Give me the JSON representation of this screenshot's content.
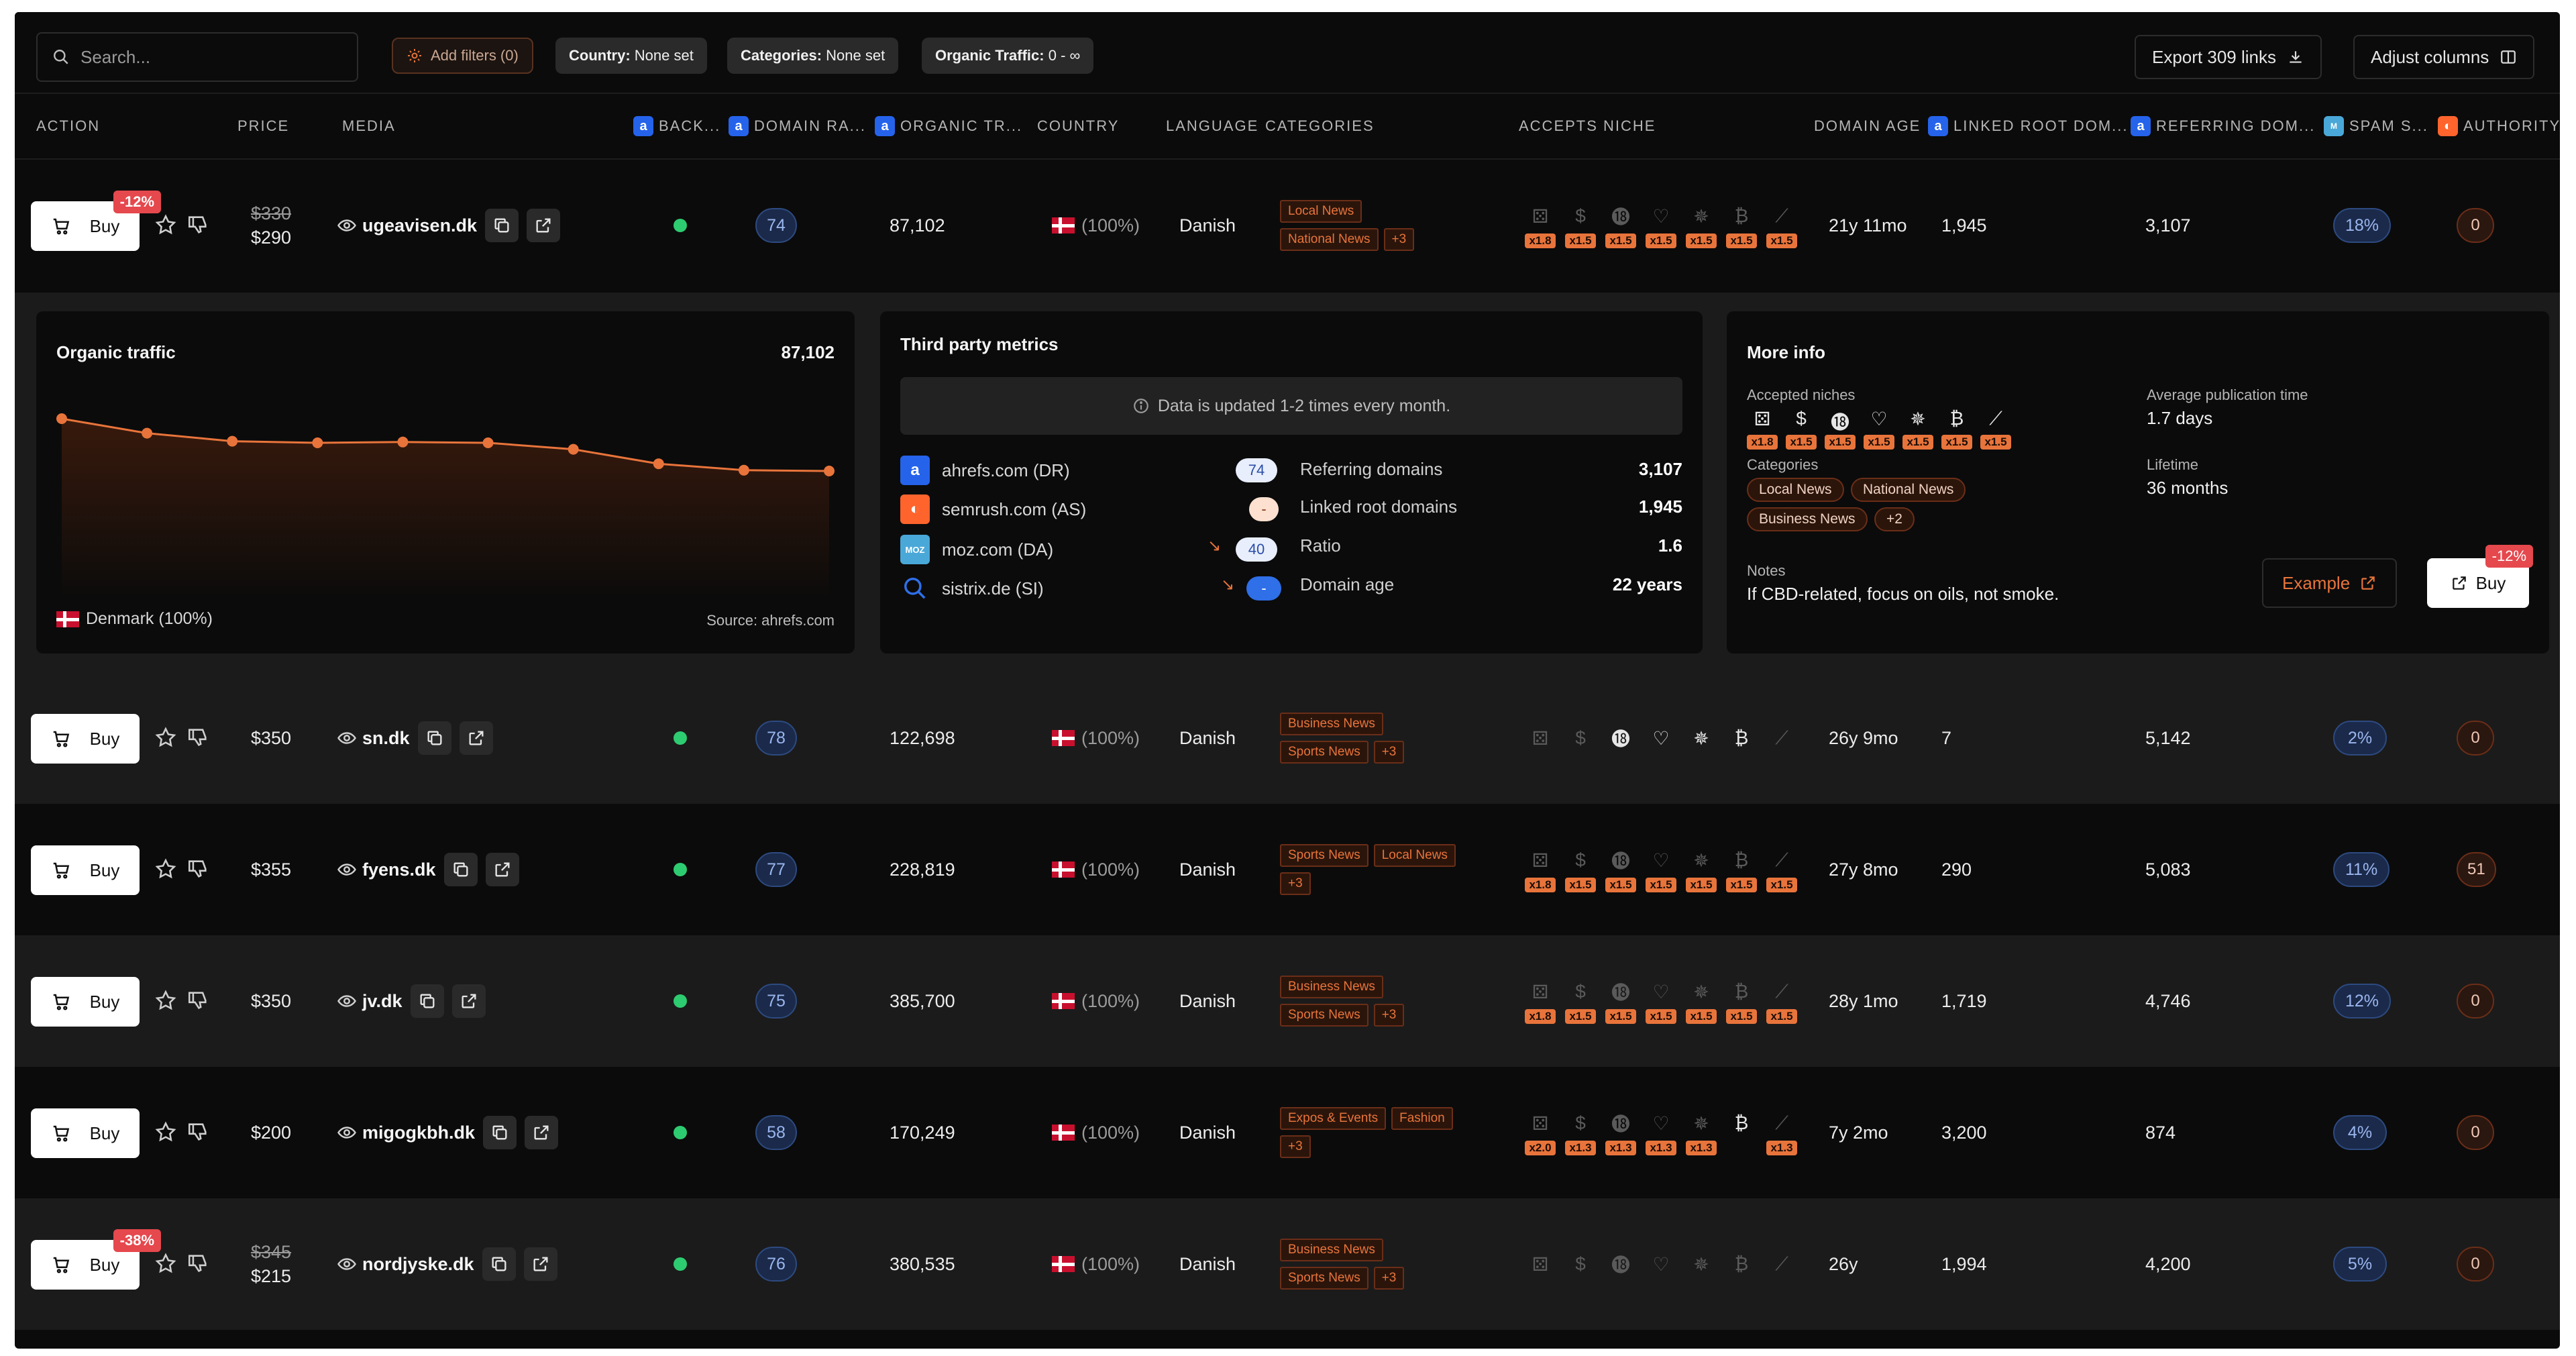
{
  "toolbar": {
    "search_placeholder": "Search...",
    "add_filters": "Add filters (0)",
    "chips": [
      {
        "label": "Country:",
        "value": "None set"
      },
      {
        "label": "Categories:",
        "value": "None set"
      },
      {
        "label": "Organic Traffic:",
        "value": "0 - ∞"
      }
    ],
    "export": "Export 309 links",
    "adjust": "Adjust columns"
  },
  "columns": {
    "action": "ACTION",
    "price": "PRICE",
    "media": "MEDIA",
    "backlinks": "BACK...",
    "domain_rating": "DOMAIN RA...",
    "organic_traffic": "ORGANIC TR...",
    "country": "COUNTRY",
    "language": "LANGUAGE",
    "categories": "CATEGORIES",
    "accepts_niche": "ACCEPTS NICHE",
    "domain_age": "DOMAIN AGE",
    "linked_root": "LINKED ROOT DOM...",
    "referring": "REFERRING DOM...",
    "spam": "SPAM S...",
    "authority": "AUTHORITY"
  },
  "buy_label": "Buy",
  "rows": [
    {
      "discount": "-12%",
      "old_price": "$330",
      "price": "$290",
      "media": "ugeavisen.dk",
      "dr": "74",
      "traffic": "87,102",
      "country": "(100%)",
      "language": "Danish",
      "cats": [
        "Local News",
        "National News",
        "+3"
      ],
      "niche_on": [
        false,
        false,
        false,
        false,
        false,
        false,
        false
      ],
      "mults": [
        "x1.8",
        "x1.5",
        "x1.5",
        "x1.5",
        "x1.5",
        "x1.5",
        "x1.5"
      ],
      "age": "21y 11mo",
      "linked": "1,945",
      "referring": "3,107",
      "spam": "18%",
      "authority": "0"
    },
    {
      "discount": "",
      "old_price": "",
      "price": "$350",
      "media": "sn.dk",
      "dr": "78",
      "traffic": "122,698",
      "country": "(100%)",
      "language": "Danish",
      "cats": [
        "Business News",
        "Sports News",
        "+3"
      ],
      "niche_on": [
        false,
        false,
        true,
        true,
        true,
        true,
        false
      ],
      "mults": [],
      "age": "26y 9mo",
      "linked": "7",
      "referring": "5,142",
      "spam": "2%",
      "authority": "0"
    },
    {
      "discount": "",
      "old_price": "",
      "price": "$355",
      "media": "fyens.dk",
      "dr": "77",
      "traffic": "228,819",
      "country": "(100%)",
      "language": "Danish",
      "cats": [
        "Sports News",
        "Local News",
        "+3"
      ],
      "niche_on": [
        false,
        false,
        false,
        false,
        false,
        false,
        false
      ],
      "mults": [
        "x1.8",
        "x1.5",
        "x1.5",
        "x1.5",
        "x1.5",
        "x1.5",
        "x1.5"
      ],
      "age": "27y 8mo",
      "linked": "290",
      "referring": "5,083",
      "spam": "11%",
      "authority": "51"
    },
    {
      "discount": "",
      "old_price": "",
      "price": "$350",
      "media": "jv.dk",
      "dr": "75",
      "traffic": "385,700",
      "country": "(100%)",
      "language": "Danish",
      "cats": [
        "Business News",
        "Sports News",
        "+3"
      ],
      "niche_on": [
        false,
        false,
        false,
        false,
        false,
        false,
        false
      ],
      "mults": [
        "x1.8",
        "x1.5",
        "x1.5",
        "x1.5",
        "x1.5",
        "x1.5",
        "x1.5"
      ],
      "age": "28y 1mo",
      "linked": "1,719",
      "referring": "4,746",
      "spam": "12%",
      "authority": "0"
    },
    {
      "discount": "",
      "old_price": "",
      "price": "$200",
      "media": "migogkbh.dk",
      "dr": "58",
      "traffic": "170,249",
      "country": "(100%)",
      "language": "Danish",
      "cats": [
        "Expos & Events",
        "Fashion",
        "+3"
      ],
      "niche_on": [
        false,
        false,
        false,
        false,
        false,
        true,
        false
      ],
      "mults": [
        "x2.0",
        "x1.3",
        "x1.3",
        "x1.3",
        "x1.3",
        "",
        "x1.3"
      ],
      "age": "7y 2mo",
      "linked": "3,200",
      "referring": "874",
      "spam": "4%",
      "authority": "0"
    },
    {
      "discount": "-38%",
      "old_price": "$345",
      "price": "$215",
      "media": "nordjyske.dk",
      "dr": "76",
      "traffic": "380,535",
      "country": "(100%)",
      "language": "Danish",
      "cats": [
        "Business News",
        "Sports News",
        "+3"
      ],
      "niche_on": [
        false,
        false,
        false,
        false,
        false,
        false,
        false
      ],
      "mults": [],
      "age": "26y",
      "linked": "1,994",
      "referring": "4,200",
      "spam": "5%",
      "authority": "0"
    }
  ],
  "expanded": {
    "traffic_title": "Organic traffic",
    "traffic_value": "87,102",
    "traffic_country": "Denmark (100%)",
    "traffic_source": "Source: ahrefs.com",
    "chart_data": {
      "type": "line",
      "values": [
        100,
        91,
        86,
        85,
        85.5,
        85,
        81,
        72,
        68,
        67.5
      ],
      "ylim": [
        0,
        115
      ]
    },
    "third_title": "Third party metrics",
    "third_info": "Data is updated 1-2 times every month.",
    "providers": [
      {
        "name": "ahrefs.com (DR)",
        "value": "74"
      },
      {
        "name": "semrush.com (AS)",
        "value": "-"
      },
      {
        "name": "moz.com (DA)",
        "value": "40"
      },
      {
        "name": "sistrix.de (SI)",
        "value": "-"
      }
    ],
    "stats": [
      {
        "k": "Referring domains",
        "v": "3,107"
      },
      {
        "k": "Linked root domains",
        "v": "1,945"
      },
      {
        "k": "Ratio",
        "v": "1.6"
      },
      {
        "k": "Domain age",
        "v": "22 years"
      }
    ],
    "more_title": "More info",
    "accepted_label": "Accepted niches",
    "accepted_mults": [
      "x1.8",
      "x1.5",
      "x1.5",
      "x1.5",
      "x1.5",
      "x1.5",
      "x1.5"
    ],
    "categories_label": "Categories",
    "categories": [
      "Local News",
      "National News",
      "Business News",
      "+2"
    ],
    "notes_label": "Notes",
    "notes": "If CBD-related, focus on oils, not smoke.",
    "avg_pub_label": "Average publication time",
    "avg_pub": "1.7 days",
    "lifetime_label": "Lifetime",
    "lifetime": "36 months",
    "example_label": "Example",
    "buy_label": "Buy",
    "discount": "-12%"
  }
}
